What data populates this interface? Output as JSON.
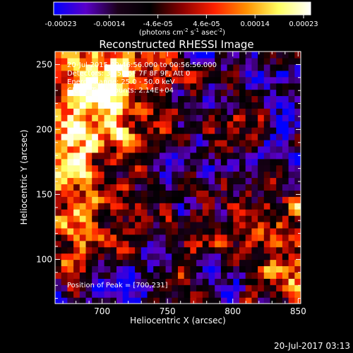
{
  "chart_data": {
    "type": "heatmap",
    "title": "Reconstructed RHESSI Image",
    "xlabel": "Heliocentric X (arcsec)",
    "ylabel": "Heliocentric Y (arcsec)",
    "xlim": [
      664,
      852
    ],
    "ylim": [
      66,
      260
    ],
    "x_ticks": [
      700,
      750,
      800,
      850
    ],
    "y_ticks": [
      100,
      150,
      200,
      250
    ],
    "colorbar": {
      "ticks": [
        "-0.00023",
        "-0.00014",
        "-4.6e-05",
        "4.6e-05",
        "0.00014",
        "0.00023"
      ],
      "range": [
        -0.00023,
        0.00023
      ],
      "unit_parts": [
        "(photons cm",
        "-2",
        " s",
        "-1",
        " asec",
        "-2",
        ")"
      ],
      "colors": [
        "#0000ff",
        "#5a00c8",
        "#1a0018",
        "#000000",
        "#8a0000",
        "#ff2000",
        "#ff9000",
        "#ffff60",
        "#ffffff"
      ]
    },
    "annotations": [
      "20-Jul-2015 00:46:56.000 to 00:56:56.000",
      "Detectors: 3F 5F 6F 7F 8F 9F, Att 0",
      "Energy Range: 25.0 - 50.0 keV",
      "Clean. Total counts: 2.14E+04"
    ],
    "peak_label": "Position of Peak = [700,231]",
    "peak_position": [
      700,
      231
    ],
    "grid_shape": [
      40,
      40
    ]
  },
  "footer": {
    "timestamp": "20-Jul-2017 03:13"
  }
}
